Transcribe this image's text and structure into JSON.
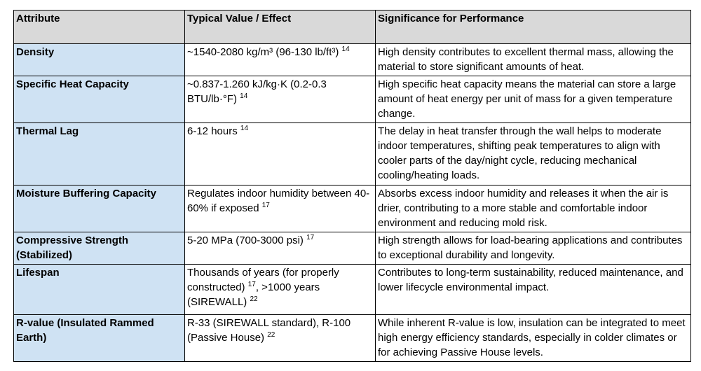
{
  "theme": {
    "header_bg": "#d9d9d9",
    "attribute_bg": "#cfe2f3",
    "border_color": "#000000",
    "text_color": "#000000"
  },
  "table": {
    "headers": [
      "Attribute",
      "Typical Value / Effect",
      "Significance for Performance"
    ],
    "rows": [
      {
        "attribute": "Density",
        "value": [
          {
            "text": "~1540-2080 kg/m³ (96-130 lb/ft³) "
          },
          {
            "text": "14",
            "sup": true
          }
        ],
        "significance": "High density contributes to excellent thermal mass, allowing the material to store significant amounts of heat."
      },
      {
        "attribute": "Specific Heat Capacity",
        "value": [
          {
            "text": "~0.837-1.260 kJ/kg·K (0.2-0.3 BTU/lb·°F) "
          },
          {
            "text": "14",
            "sup": true
          }
        ],
        "significance": "High specific heat capacity means the material can store a large amount of heat energy per unit of mass for a given temperature change."
      },
      {
        "attribute": "Thermal Lag",
        "value": [
          {
            "text": "6-12 hours "
          },
          {
            "text": "14",
            "sup": true
          }
        ],
        "significance": "The delay in heat transfer through the wall helps to moderate indoor temperatures, shifting peak temperatures to align with cooler parts of the day/night cycle, reducing mechanical cooling/heating loads."
      },
      {
        "attribute": "Moisture Buffering Capacity",
        "value": [
          {
            "text": "Regulates indoor humidity between 40-60% if exposed "
          },
          {
            "text": "17",
            "sup": true
          }
        ],
        "significance": "Absorbs excess indoor humidity and releases it when the air is drier, contributing to a more stable and comfortable indoor environment and reducing mold risk."
      },
      {
        "attribute": "Compressive Strength (Stabilized)",
        "value": [
          {
            "text": "5-20 MPa (700-3000 psi) "
          },
          {
            "text": "17",
            "sup": true
          }
        ],
        "significance": "High strength allows for load-bearing applications and contributes to exceptional durability and longevity."
      },
      {
        "attribute": "Lifespan",
        "value": [
          {
            "text": "Thousands of years (for properly constructed) "
          },
          {
            "text": "17",
            "sup": true
          },
          {
            "text": ", >1000 years (SIREWALL) "
          },
          {
            "text": "22",
            "sup": true
          }
        ],
        "significance": "Contributes to long-term sustainability, reduced maintenance, and lower lifecycle environmental impact."
      },
      {
        "attribute": "R-value (Insulated Rammed Earth)",
        "value": [
          {
            "text": "R-33 (SIREWALL standard), R-100 (Passive House) "
          },
          {
            "text": "22",
            "sup": true
          }
        ],
        "significance": "While inherent R-value is low, insulation can be integrated to meet high energy efficiency standards, especially in colder climates or for achieving Passive House levels."
      }
    ]
  }
}
